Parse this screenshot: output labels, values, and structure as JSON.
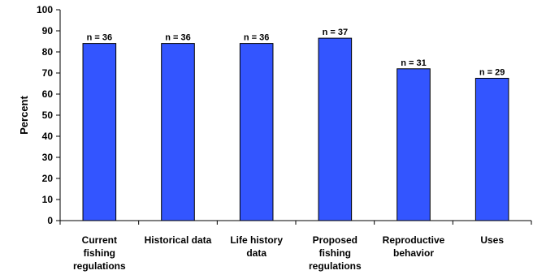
{
  "chart_data": {
    "type": "bar",
    "title": "",
    "xlabel": "",
    "ylabel": "Percent",
    "ylim": [
      0,
      100
    ],
    "yticks": [
      0,
      10,
      20,
      30,
      40,
      50,
      60,
      70,
      80,
      90,
      100
    ],
    "grid": false,
    "legend": "none",
    "bar_color": "#3355FF",
    "categories": [
      [
        "Current",
        "fishing",
        "regulations"
      ],
      [
        "Historical data"
      ],
      [
        "Life history",
        "data"
      ],
      [
        "Proposed",
        "fishing",
        "regulations"
      ],
      [
        "Reproductive",
        "behavior"
      ],
      [
        "Uses"
      ]
    ],
    "values": [
      84,
      84,
      84,
      86.5,
      72,
      67.5
    ],
    "data_labels": [
      "n = 36",
      "n = 36",
      "n = 36",
      "n = 37",
      "n = 31",
      "n = 29"
    ]
  }
}
